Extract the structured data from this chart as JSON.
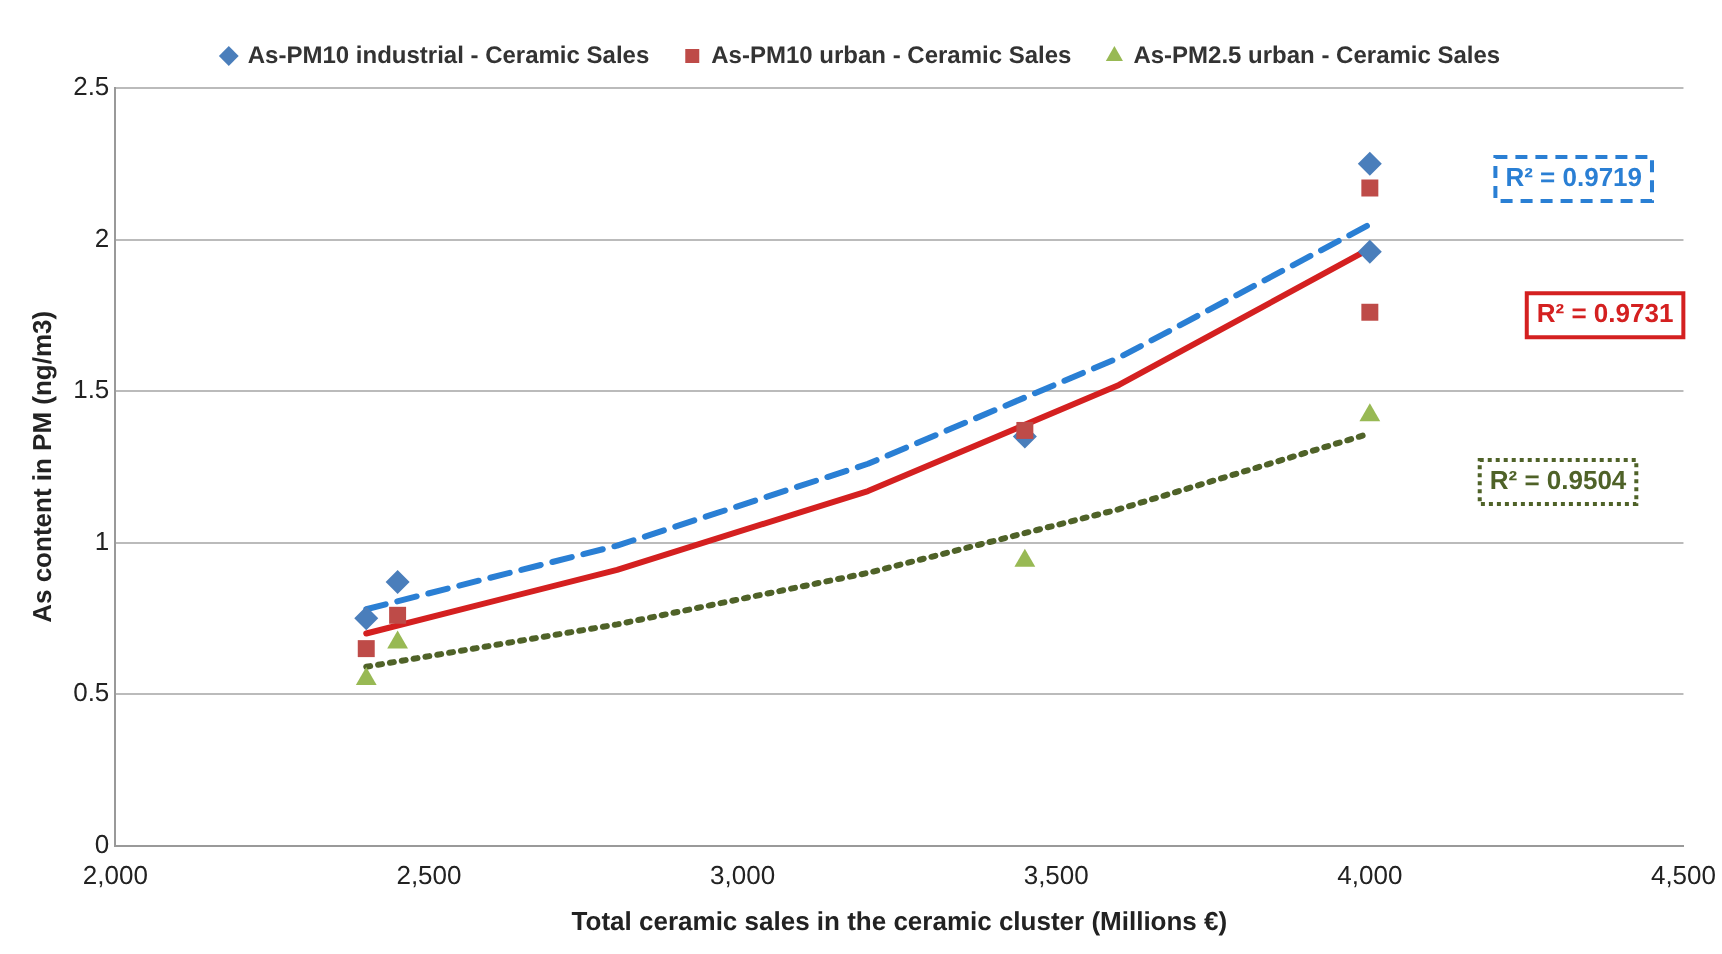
{
  "chart_data": {
    "type": "scatter",
    "xlabel": "Total ceramic sales in the ceramic cluster (Millions €)",
    "ylabel": "As content in PM (ng/m3)",
    "xlim": [
      2000,
      4500
    ],
    "xticks": [
      {
        "value": 2000,
        "label": "2,000"
      },
      {
        "value": 2500,
        "label": "2,500"
      },
      {
        "value": 3000,
        "label": "3,000"
      },
      {
        "value": 3500,
        "label": "3,500"
      },
      {
        "value": 4000,
        "label": "4,000"
      },
      {
        "value": 4500,
        "label": "4,500"
      }
    ],
    "ylim": [
      0,
      2.5
    ],
    "yticks": [
      0,
      0.5,
      1,
      1.5,
      2,
      2.5
    ],
    "grid": "y",
    "legend": "top",
    "series": [
      {
        "name": "As-PM10 industrial - Ceramic Sales",
        "color": "#4a7ebb",
        "marker": "diamond",
        "x": [
          2400,
          2450,
          3450,
          4000,
          4000
        ],
        "values": [
          0.75,
          0.87,
          1.35,
          2.25,
          1.96
        ]
      },
      {
        "name": "As-PM10 urban - Ceramic Sales",
        "color": "#be4b48",
        "marker": "square",
        "x": [
          2400,
          2450,
          3450,
          4000,
          4000
        ],
        "values": [
          0.65,
          0.76,
          1.37,
          2.17,
          1.76
        ]
      },
      {
        "name": "As-PM2.5 urban - Ceramic Sales",
        "color": "#98b954",
        "marker": "triangle",
        "x": [
          2400,
          2450,
          3450,
          4000
        ],
        "values": [
          0.55,
          0.67,
          0.94,
          1.42
        ]
      },
      {
        "type": "line",
        "color": "#2a7fd4",
        "marker": "none",
        "line_style": "dashed",
        "x": [
          2400,
          2800,
          3200,
          3600,
          4000
        ],
        "values": [
          0.78,
          0.99,
          1.26,
          1.61,
          2.05
        ]
      },
      {
        "type": "line",
        "color": "#d42020",
        "marker": "none",
        "line_style": "solid",
        "x": [
          2400,
          2800,
          3200,
          3600,
          4000
        ],
        "values": [
          0.7,
          0.91,
          1.17,
          1.52,
          1.97
        ]
      },
      {
        "type": "line",
        "color": "#4f6228",
        "marker": "none",
        "line_style": "dotted",
        "x": [
          2400,
          2800,
          3200,
          3600,
          4000
        ],
        "values": [
          0.59,
          0.73,
          0.9,
          1.11,
          1.36
        ]
      }
    ],
    "annotations": [
      "R² = 0.9719",
      "R² = 0.9731",
      "R² = 0.9504"
    ]
  }
}
